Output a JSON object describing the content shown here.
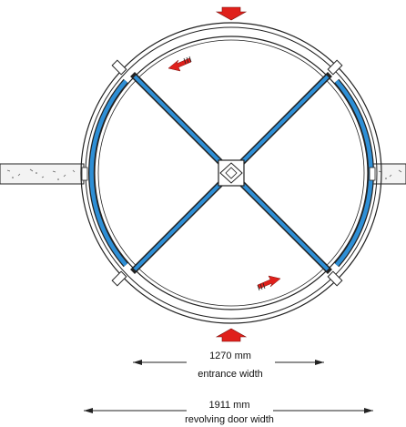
{
  "dimensions": {
    "entrance": {
      "value": "1270 mm",
      "label": "entrance width"
    },
    "revolving": {
      "value": "1911 mm",
      "label": "revolving door width"
    }
  },
  "colors": {
    "glass_blue": "#2e8fd6",
    "arrow_red": "#e0201b",
    "line": "#222222",
    "wall_fill": "#f3f3f3"
  },
  "icons": {
    "entry_arrows": "red-block-arrow",
    "rotation_arrows": "red-rotation-arrow-with-hatch"
  }
}
